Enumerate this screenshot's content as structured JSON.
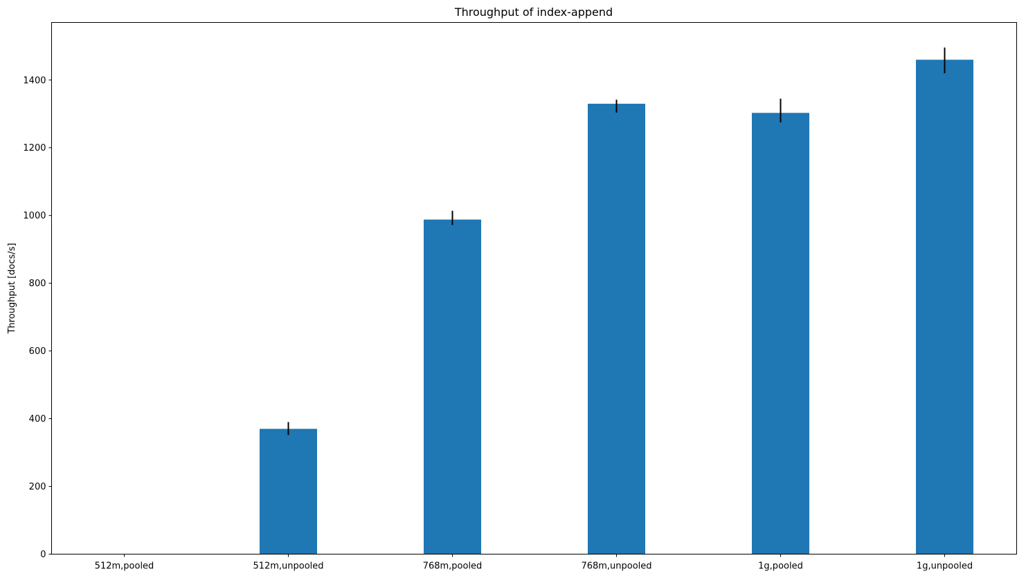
{
  "chart_data": {
    "type": "bar",
    "title": "Throughput of index-append",
    "xlabel": "",
    "ylabel": "Throughput [docs/s]",
    "categories": [
      "512m,pooled",
      "512m,unpooled",
      "768m,pooled",
      "768m,unpooled",
      "1g,pooled",
      "1g,unpooled"
    ],
    "values": [
      0,
      370,
      988,
      1330,
      1303,
      1460
    ],
    "error_low": [
      0,
      352,
      972,
      1304,
      1275,
      1420
    ],
    "error_high": [
      0,
      390,
      1014,
      1342,
      1345,
      1496
    ],
    "ylim": [
      0,
      1570
    ],
    "yticks": [
      0,
      200,
      400,
      600,
      800,
      1000,
      1200,
      1400
    ],
    "grid": false,
    "bar_color": "#1f77b4",
    "error_color": "#000000"
  }
}
